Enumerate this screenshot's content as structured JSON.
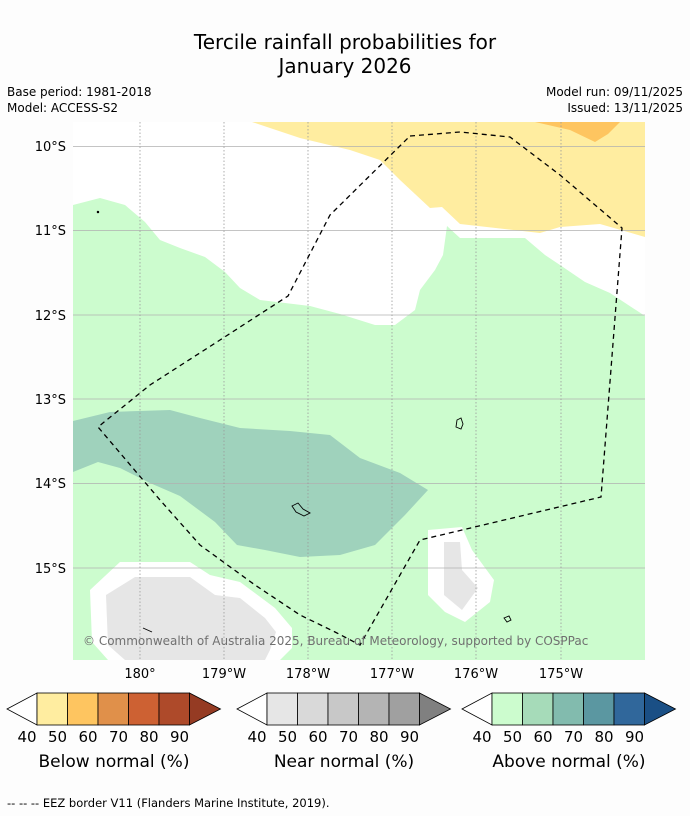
{
  "title_line1": "Tercile rainfall probabilities for",
  "title_line2": "January 2026",
  "base_period": "Base period: 1981-2018",
  "model": "Model: ACCESS-S2",
  "model_run": "Model run: 09/11/2025",
  "issued": "Issued: 13/11/2025",
  "lat_labels": [
    "10°S",
    "11°S",
    "12°S",
    "13°S",
    "14°S",
    "15°S"
  ],
  "lon_labels": [
    "180°",
    "179°W",
    "178°W",
    "177°W",
    "176°W",
    "175°W"
  ],
  "copyright": "© Commonwealth of Australia 2025, Bureau of Meteorology, supported by COSPPac",
  "colorbars": {
    "ticks": [
      "40",
      "50",
      "60",
      "70",
      "80",
      "90"
    ],
    "below": {
      "label": "Below normal (%)",
      "colors": [
        "#ffeda0",
        "#fec560",
        "#e0904a",
        "#cd6133",
        "#ae4a2a",
        "#953b23"
      ]
    },
    "near": {
      "label": "Near normal (%)",
      "colors": [
        "#e6e6e6",
        "#d9d9d9",
        "#c8c8c8",
        "#b4b4b4",
        "#a0a0a0",
        "#808080"
      ]
    },
    "above": {
      "label": "Above normal (%)",
      "colors": [
        "#ccfcce",
        "#a6dbb9",
        "#82bbae",
        "#5b97a1",
        "#30679b",
        "#1a4f85"
      ]
    }
  },
  "footnote": "--  --  -- EEZ border V11 (Flanders Marine Institute, 2019)."
}
